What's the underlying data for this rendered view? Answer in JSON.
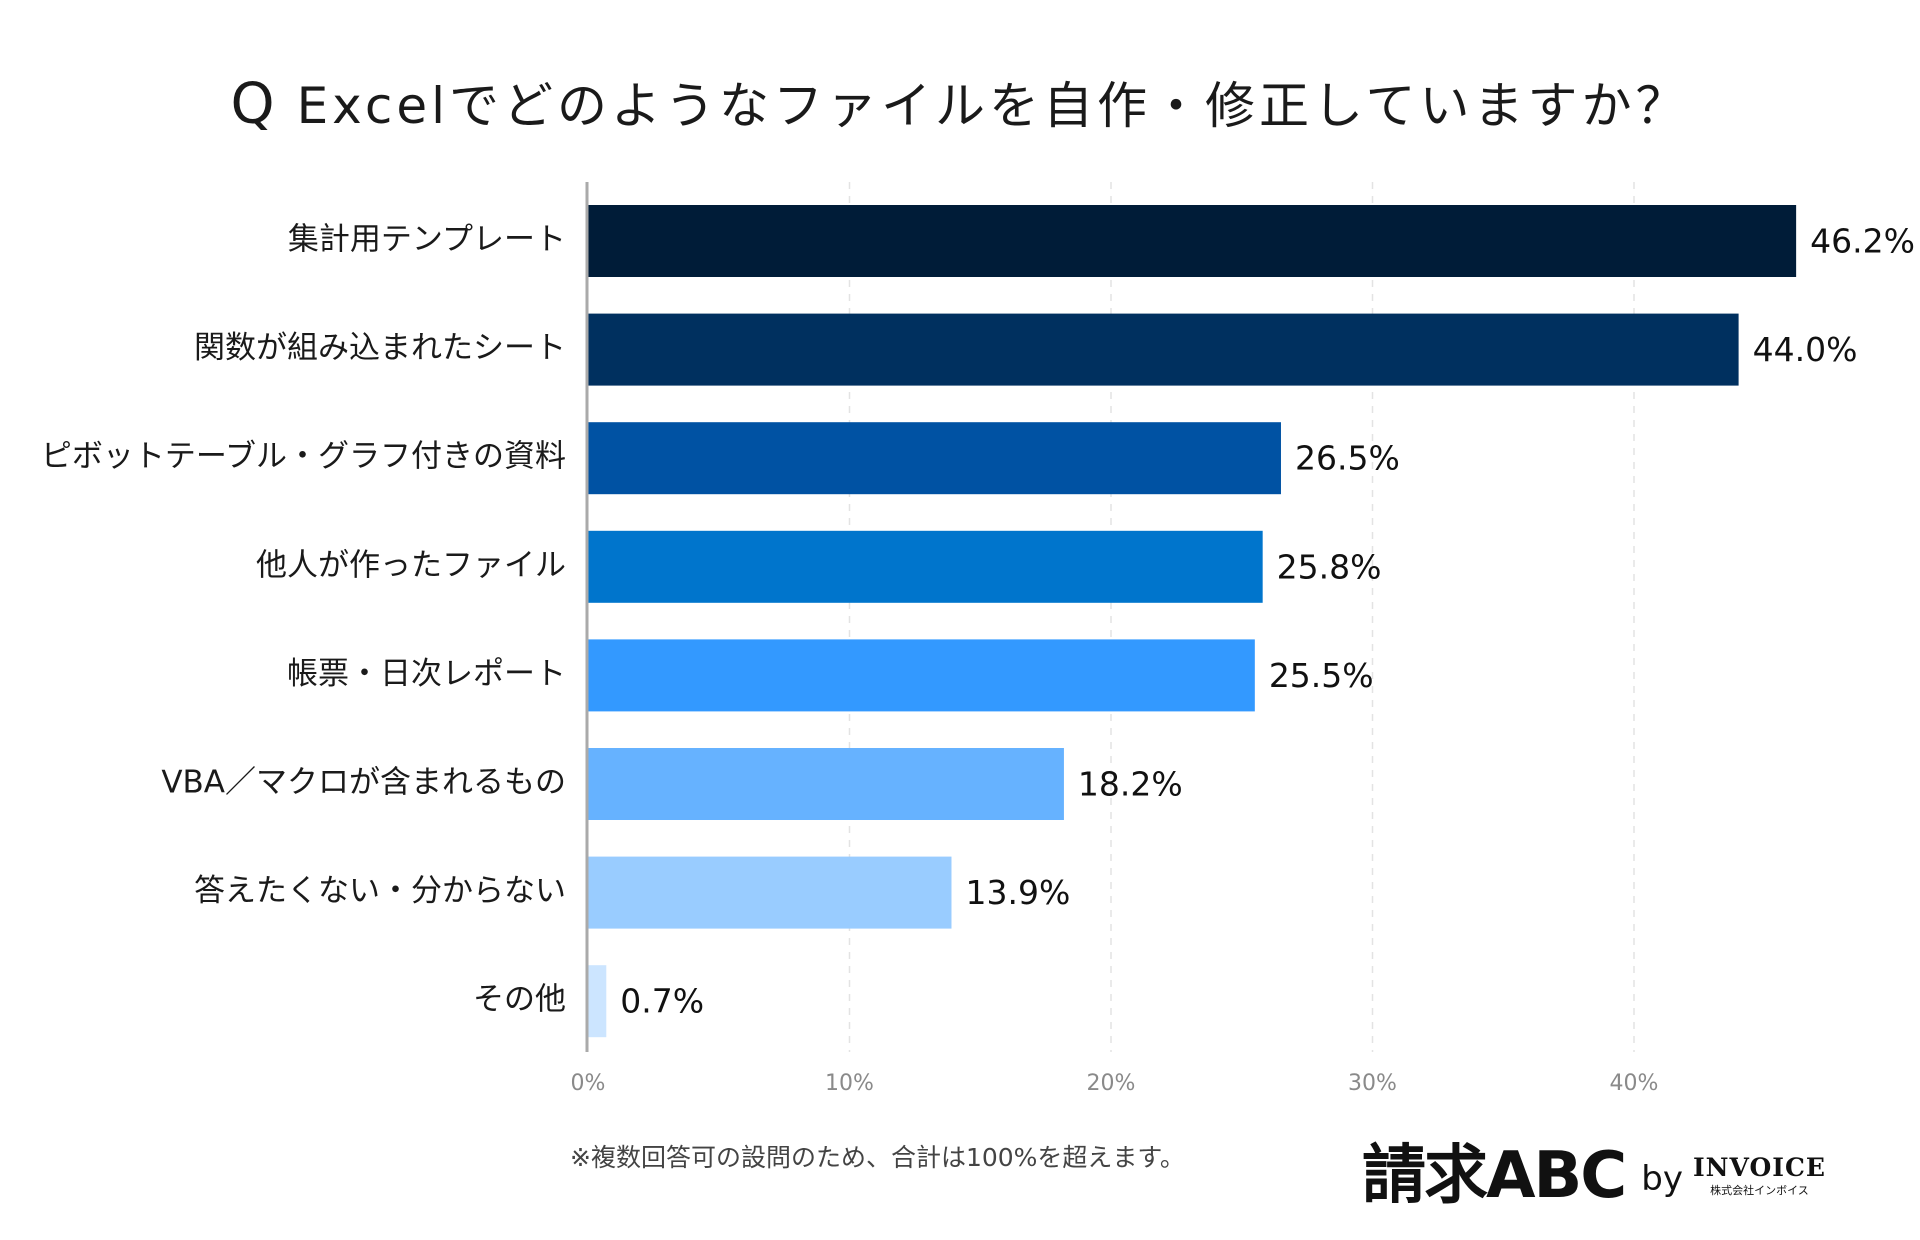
{
  "title": {
    "q_mark": "Q",
    "text": "Excelでどのようなファイルを自作・修正していますか？"
  },
  "chart_data": {
    "type": "bar",
    "orientation": "horizontal",
    "title": "Excelでどのようなファイルを自作・修正していますか？",
    "categories": [
      "集計用テンプレート",
      "関数が組み込まれたシート",
      "ピボットテーブル・グラフ付きの資料",
      "他人が作ったファイル",
      "帳票・日次レポート",
      "VBA／マクロが含まれるもの",
      "答えたくない・分からない",
      "その他"
    ],
    "values": [
      46.2,
      44.0,
      26.5,
      25.8,
      25.5,
      18.2,
      13.9,
      0.7
    ],
    "value_labels": [
      "46.2%",
      "44.0%",
      "26.5%",
      "25.8%",
      "25.5%",
      "18.2%",
      "13.9%",
      "0.7%"
    ],
    "bar_colors": [
      "#001C38",
      "#00305F",
      "#0052A3",
      "#0075CC",
      "#3399FF",
      "#66B2FF",
      "#99CCFF",
      "#CCE5FF"
    ],
    "xlim": [
      0,
      50
    ],
    "xticks": [
      0,
      10,
      20,
      30,
      40
    ],
    "xtick_labels": [
      "0%",
      "10%",
      "20%",
      "30%",
      "40%"
    ],
    "grid": true,
    "xlabel": "",
    "ylabel": ""
  },
  "footnote": "※複数回答可の設問のため、合計は100%を超えます。",
  "brand": {
    "main": "請求ABC",
    "by": "by",
    "company": "INVOICE",
    "company_sub": "株式会社インボイス"
  }
}
